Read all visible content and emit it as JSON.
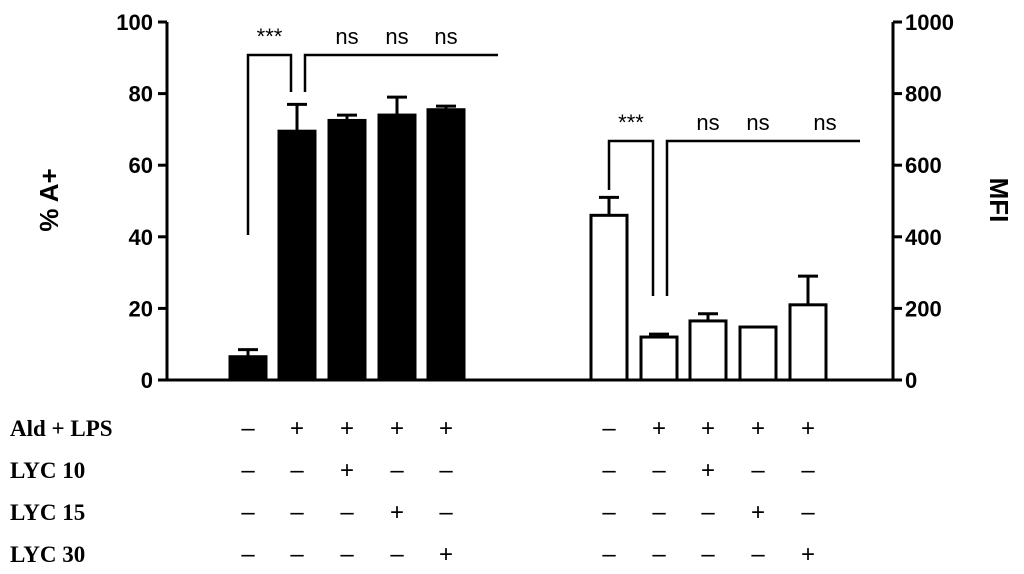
{
  "chart_data": {
    "type": "bar",
    "left_axis": {
      "title": "% A+",
      "ylim": [
        0,
        100
      ],
      "ticks": [
        "0",
        "20",
        "40",
        "60",
        "80",
        "100"
      ]
    },
    "right_axis": {
      "title": "MFI",
      "ylim": [
        0,
        1000
      ],
      "ticks": [
        "0",
        "200",
        "400",
        "600",
        "800",
        "1000"
      ]
    },
    "groups": [
      {
        "axis": "left",
        "fill": "#000000",
        "values": [
          6.5,
          69.5,
          72.5,
          74,
          75.5
        ],
        "errors": [
          2,
          7.5,
          1.5,
          5,
          1
        ],
        "significance": {
          "control_vs_treatment": "***",
          "comparisons": [
            "ns",
            "ns",
            "ns"
          ]
        }
      },
      {
        "axis": "right",
        "fill": "#ffffff",
        "values": [
          460,
          120,
          165,
          148,
          210
        ],
        "errors": [
          50,
          8,
          20,
          0,
          80
        ],
        "significance": {
          "control_vs_treatment": "***",
          "comparisons": [
            "ns",
            "ns",
            "ns"
          ]
        }
      }
    ],
    "treatment_table": {
      "rows": [
        {
          "label": "Ald + LPS",
          "signs": [
            "–",
            "+",
            "+",
            "+",
            "+"
          ]
        },
        {
          "label": "LYC 10",
          "signs": [
            "–",
            "–",
            "+",
            "–",
            "–"
          ]
        },
        {
          "label": "LYC 15",
          "signs": [
            "–",
            "–",
            "–",
            "+",
            "–"
          ]
        },
        {
          "label": "LYC 30",
          "signs": [
            "–",
            "–",
            "–",
            "–",
            "+"
          ]
        }
      ]
    }
  }
}
